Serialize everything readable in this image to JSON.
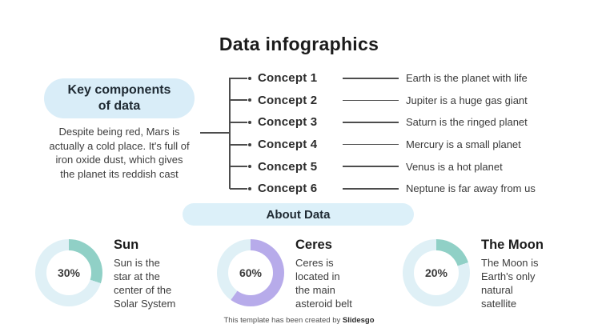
{
  "title": "Data infographics",
  "key_components": {
    "heading_lines": [
      "Key components",
      "of data"
    ],
    "body_lines": [
      "Despite being red, Mars is",
      "actually a cold place. It's full of",
      "iron oxide dust, which gives",
      "the planet its reddish cast"
    ]
  },
  "concepts": [
    {
      "label": "Concept 1",
      "description": "Earth is the planet with life"
    },
    {
      "label": "Concept 2",
      "description": "Jupiter is a huge gas giant"
    },
    {
      "label": "Concept 3",
      "description": "Saturn is the ringed planet"
    },
    {
      "label": "Concept 4",
      "description": "Mercury is a small planet"
    },
    {
      "label": "Concept 5",
      "description": "Venus is a hot planet"
    },
    {
      "label": "Concept 6",
      "description": "Neptune is far away from us"
    }
  ],
  "about_label": "About Data",
  "stats": [
    {
      "name": "Sun",
      "percent_label": "30%",
      "value": 30,
      "color": "#90d0c6",
      "description_lines": [
        "Sun is the",
        "star at the",
        "center of the",
        "Solar System"
      ]
    },
    {
      "name": "Ceres",
      "percent_label": "60%",
      "value": 60,
      "color": "#b7abea",
      "description_lines": [
        "Ceres is",
        "located in",
        "the main",
        "asteroid belt"
      ]
    },
    {
      "name": "The Moon",
      "percent_label": "20%",
      "value": 20,
      "color": "#90d0c6",
      "description_lines": [
        "The Moon is",
        "Earth's only",
        "natural",
        "satellite"
      ]
    }
  ],
  "footer": {
    "prefix": "This template has been created by ",
    "brand": "Slidesgo"
  },
  "colors": {
    "pill_bg": "#d9edf8",
    "about_pill_bg": "#dcf0f9",
    "donut_track": "#dff0f6",
    "line": "#4d4d4d",
    "teal": "#90d0c6",
    "purple": "#b7abea"
  },
  "chart_data": [
    {
      "type": "pie",
      "title": "Sun",
      "labels": [
        "value",
        "remainder"
      ],
      "values": [
        30,
        70
      ],
      "center_label": "30%",
      "slice_colors": [
        "#90d0c6",
        "#dff0f6"
      ]
    },
    {
      "type": "pie",
      "title": "Ceres",
      "labels": [
        "value",
        "remainder"
      ],
      "values": [
        60,
        40
      ],
      "center_label": "60%",
      "slice_colors": [
        "#b7abea",
        "#dff0f6"
      ]
    },
    {
      "type": "pie",
      "title": "The Moon",
      "labels": [
        "value",
        "remainder"
      ],
      "values": [
        20,
        80
      ],
      "center_label": "20%",
      "slice_colors": [
        "#90d0c6",
        "#dff0f6"
      ]
    }
  ]
}
